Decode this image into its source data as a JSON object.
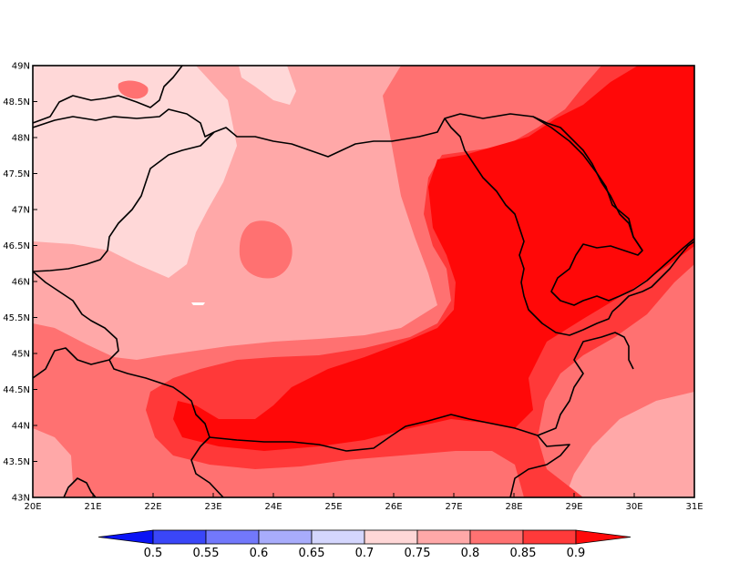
{
  "map": {
    "x_axis": {
      "ticks": [
        "20E",
        "21E",
        "22E",
        "23E",
        "24E",
        "25E",
        "26E",
        "27E",
        "28E",
        "29E",
        "30E",
        "31E"
      ]
    },
    "y_axis": {
      "ticks": [
        "43N",
        "43.5N",
        "44N",
        "44.5N",
        "45N",
        "45.5N",
        "46N",
        "46.5N",
        "47N",
        "47.5N",
        "48N",
        "48.5N",
        "49N"
      ]
    },
    "colorbar": {
      "labels": [
        "0.5",
        "0.55",
        "0.6",
        "0.65",
        "0.7",
        "0.75",
        "0.8",
        "0.85",
        "0.9"
      ],
      "colors": [
        "#0a14f5",
        "#3a46f8",
        "#7278fb",
        "#a8acfb",
        "#d4d6fd",
        "#ffd7d7",
        "#ffa8a8",
        "#ff7272",
        "#ff3a3a",
        "#ff0a0a"
      ],
      "extend": "both"
    },
    "field_colors": {
      "c070_075": "#ffd8d8",
      "c075_080": "#ffa8a8",
      "c080_085": "#ff7171",
      "c085_090": "#ff3939",
      "c090_up": "#ff0808"
    },
    "border_color": "#000000"
  }
}
